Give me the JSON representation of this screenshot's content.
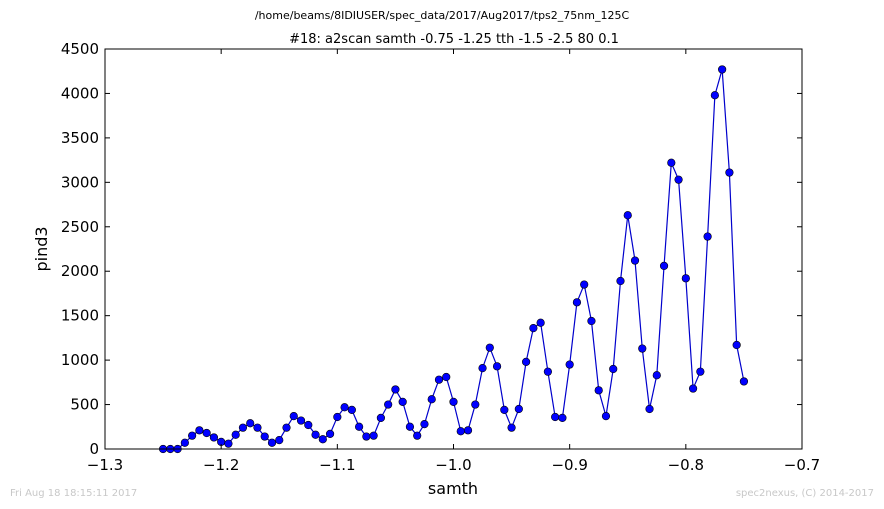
{
  "header": {
    "path": "/home/beams/8IDIUSER/spec_data/2017/Aug2017/tps2_75nm_125C"
  },
  "footer": {
    "timestamp": "Fri Aug 18 18:15:11 2017",
    "credit": "spec2nexus, (C) 2014-2017"
  },
  "chart_data": {
    "type": "line",
    "title": "#18: a2scan  samth -0.75 -1.25  tth -1.5 -2.5  80 0.1",
    "xlabel": "samth",
    "ylabel": "pind3",
    "xlim": [
      -1.3,
      -0.7
    ],
    "ylim": [
      0,
      4500
    ],
    "xticks": [
      "−1.3",
      "−1.2",
      "−1.1",
      "−1.0",
      "−0.9",
      "−0.8",
      "−0.7"
    ],
    "xtick_values": [
      -1.3,
      -1.2,
      -1.1,
      -1.0,
      -0.9,
      -0.8,
      -0.7
    ],
    "yticks": [
      "0",
      "500",
      "1000",
      "1500",
      "2000",
      "2500",
      "3000",
      "3500",
      "4000",
      "4500"
    ],
    "ytick_values": [
      0,
      500,
      1000,
      1500,
      2000,
      2500,
      3000,
      3500,
      4000,
      4500
    ],
    "grid": false,
    "line_color": "#0000cc",
    "marker_color": "#0000ff",
    "series": [
      {
        "x": [
          -1.25,
          -1.24375,
          -1.2375,
          -1.23125,
          -1.225,
          -1.21875,
          -1.2125,
          -1.20625,
          -1.2,
          -1.19375,
          -1.1875,
          -1.18125,
          -1.175,
          -1.16875,
          -1.1625,
          -1.15625,
          -1.15,
          -1.14375,
          -1.1375,
          -1.13125,
          -1.125,
          -1.11875,
          -1.1125,
          -1.10625,
          -1.1,
          -1.09375,
          -1.0875,
          -1.08125,
          -1.075,
          -1.06875,
          -1.0625,
          -1.05625,
          -1.05,
          -1.04375,
          -1.0375,
          -1.03125,
          -1.025,
          -1.01875,
          -1.0125,
          -1.00625,
          -1.0,
          -0.99375,
          -0.9875,
          -0.98125,
          -0.975,
          -0.96875,
          -0.9625,
          -0.95625,
          -0.95,
          -0.94375,
          -0.9375,
          -0.93125,
          -0.925,
          -0.91875,
          -0.9125,
          -0.90625,
          -0.9,
          -0.89375,
          -0.8875,
          -0.88125,
          -0.875,
          -0.86875,
          -0.8625,
          -0.85625,
          -0.85,
          -0.84375,
          -0.8375,
          -0.83125,
          -0.825,
          -0.81875,
          -0.8125,
          -0.80625,
          -0.8,
          -0.79375,
          -0.7875,
          -0.78125,
          -0.775,
          -0.76875,
          -0.7625,
          -0.75625,
          -0.75
        ],
        "y": [
          0,
          0,
          0,
          70,
          150,
          210,
          180,
          130,
          80,
          60,
          160,
          240,
          290,
          240,
          140,
          70,
          100,
          240,
          370,
          320,
          270,
          160,
          110,
          170,
          360,
          470,
          440,
          250,
          140,
          150,
          350,
          500,
          670,
          530,
          250,
          150,
          280,
          560,
          780,
          810,
          530,
          200,
          210,
          500,
          910,
          1140,
          930,
          440,
          240,
          450,
          980,
          1360,
          1420,
          870,
          360,
          350,
          950,
          1650,
          1850,
          1440,
          660,
          370,
          900,
          1890,
          2630,
          2120,
          1130,
          450,
          830,
          2060,
          3220,
          3030,
          1920,
          680,
          870,
          2390,
          3980,
          4270,
          3110,
          1170,
          760
        ]
      }
    ]
  }
}
